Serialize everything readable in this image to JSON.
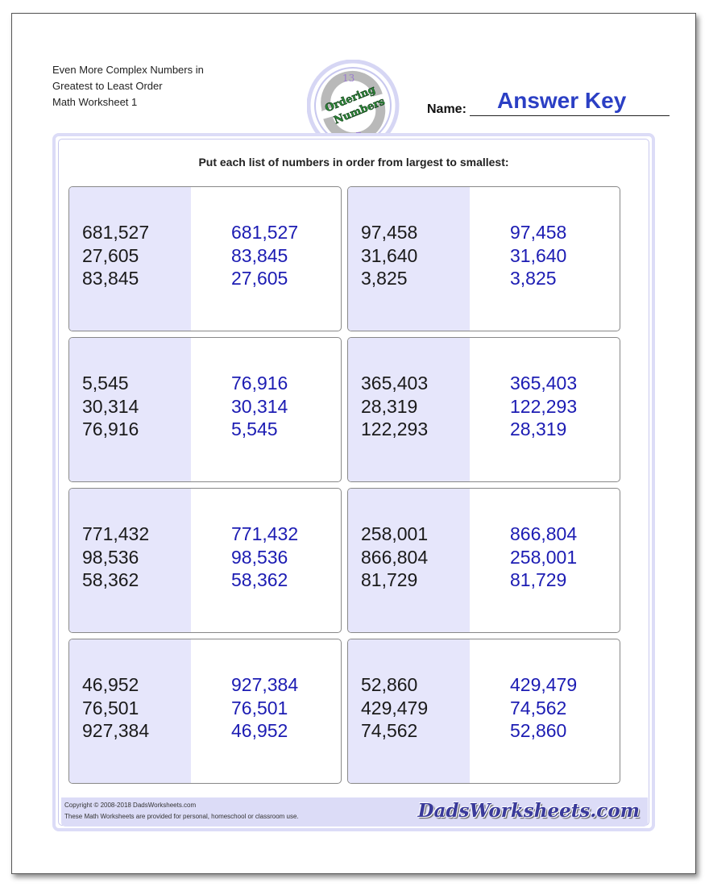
{
  "header": {
    "title_lines": [
      "Even More Complex Numbers in",
      "Greatest to Least Order",
      "Math Worksheet 1"
    ],
    "name_label": "Name:",
    "answer_key": "Answer Key"
  },
  "logo": {
    "top_number": "13",
    "word1": "Ordering",
    "word2": "Numbers",
    "bottom_number": "7"
  },
  "instruction": "Put each list of numbers in order from largest to smallest:",
  "problems": [
    {
      "given": [
        "681,527",
        "27,605",
        "83,845"
      ],
      "answer": [
        "681,527",
        "83,845",
        "27,605"
      ]
    },
    {
      "given": [
        "97,458",
        "31,640",
        "3,825"
      ],
      "answer": [
        "97,458",
        "31,640",
        "3,825"
      ]
    },
    {
      "given": [
        "5,545",
        "30,314",
        "76,916"
      ],
      "answer": [
        "76,916",
        "30,314",
        "5,545"
      ]
    },
    {
      "given": [
        "365,403",
        "28,319",
        "122,293"
      ],
      "answer": [
        "365,403",
        "122,293",
        "28,319"
      ]
    },
    {
      "given": [
        "771,432",
        "98,536",
        "58,362"
      ],
      "answer": [
        "771,432",
        "98,536",
        "58,362"
      ]
    },
    {
      "given": [
        "258,001",
        "866,804",
        "81,729"
      ],
      "answer": [
        "866,804",
        "258,001",
        "81,729"
      ]
    },
    {
      "given": [
        "46,952",
        "76,501",
        "927,384"
      ],
      "answer": [
        "927,384",
        "76,501",
        "46,952"
      ]
    },
    {
      "given": [
        "52,860",
        "429,479",
        "74,562"
      ],
      "answer": [
        "429,479",
        "74,562",
        "52,860"
      ]
    }
  ],
  "footer": {
    "copyright": "Copyright © 2008-2018 DadsWorksheets.com",
    "notice": "These Math Worksheets are provided for personal, homeschool or classroom use.",
    "brand": "DadsWorksheets.com"
  },
  "colors": {
    "answer_text": "#1c1cb3",
    "answer_key": "#2b3fc4",
    "shade": "#e6e6fb",
    "frame": "#dcdcf7"
  }
}
